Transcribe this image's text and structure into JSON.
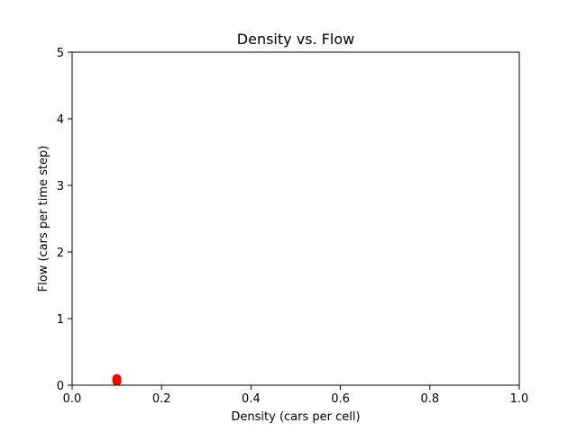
{
  "chart_data": {
    "type": "scatter",
    "title": "Density vs. Flow",
    "xlabel": "Density (cars per cell)",
    "ylabel": "Flow (cars per time step)",
    "xlim": [
      0.0,
      1.0
    ],
    "ylim": [
      0,
      5
    ],
    "xticks": [
      0.0,
      0.2,
      0.4,
      0.6,
      0.8,
      1.0
    ],
    "xtick_labels": [
      "0.0",
      "0.2",
      "0.4",
      "0.6",
      "0.8",
      "1.0"
    ],
    "yticks": [
      0,
      1,
      2,
      3,
      4,
      5
    ],
    "ytick_labels": [
      "0",
      "1",
      "2",
      "3",
      "4",
      "5"
    ],
    "grid": false,
    "series": [
      {
        "color": "#ff0000",
        "marker": "circle",
        "points": [
          {
            "x": 0.1,
            "y": 0.08
          },
          {
            "x": 0.1,
            "y": 0.1
          },
          {
            "x": 0.1,
            "y": 0.06
          }
        ]
      }
    ]
  }
}
